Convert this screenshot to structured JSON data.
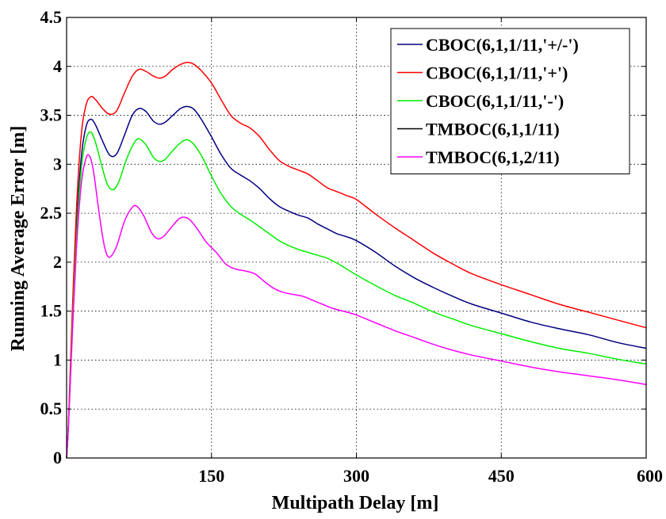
{
  "chart_data": {
    "type": "line",
    "title": "",
    "xlabel": "Multipath Delay [m]",
    "ylabel": "Running Average Error [m]",
    "xlim": [
      0,
      600
    ],
    "ylim": [
      0,
      4.5
    ],
    "xticks": [
      150,
      300,
      450,
      600
    ],
    "xtick_labels": [
      "150",
      "300",
      "450",
      "600"
    ],
    "yticks": [
      0,
      0.5,
      1,
      1.5,
      2,
      2.5,
      3,
      3.5,
      4,
      4.5
    ],
    "ytick_labels": [
      "0",
      "0.5",
      "1",
      "1.5",
      "2",
      "2.5",
      "3",
      "3.5",
      "4",
      "4.5"
    ],
    "grid": true,
    "legend_position": "top-right",
    "series": [
      {
        "name": "CBOC(6,1,1/11,'+/-')",
        "color": "#000080",
        "points": [
          [
            0,
            0
          ],
          [
            2,
            0.35
          ],
          [
            5,
            1.15
          ],
          [
            10,
            2.3
          ],
          [
            15,
            3.05
          ],
          [
            20,
            3.38
          ],
          [
            25,
            3.46
          ],
          [
            30,
            3.4
          ],
          [
            38,
            3.22
          ],
          [
            45,
            3.09
          ],
          [
            52,
            3.11
          ],
          [
            60,
            3.3
          ],
          [
            68,
            3.5
          ],
          [
            75,
            3.57
          ],
          [
            82,
            3.54
          ],
          [
            90,
            3.44
          ],
          [
            96,
            3.41
          ],
          [
            102,
            3.43
          ],
          [
            110,
            3.5
          ],
          [
            118,
            3.57
          ],
          [
            125,
            3.59
          ],
          [
            132,
            3.56
          ],
          [
            140,
            3.45
          ],
          [
            150,
            3.28
          ],
          [
            160,
            3.1
          ],
          [
            170,
            2.96
          ],
          [
            180,
            2.89
          ],
          [
            190,
            2.83
          ],
          [
            200,
            2.75
          ],
          [
            210,
            2.65
          ],
          [
            220,
            2.57
          ],
          [
            230,
            2.52
          ],
          [
            240,
            2.48
          ],
          [
            250,
            2.45
          ],
          [
            260,
            2.39
          ],
          [
            270,
            2.34
          ],
          [
            280,
            2.29
          ],
          [
            290,
            2.26
          ],
          [
            300,
            2.22
          ],
          [
            320,
            2.1
          ],
          [
            340,
            1.96
          ],
          [
            360,
            1.84
          ],
          [
            380,
            1.74
          ],
          [
            400,
            1.65
          ],
          [
            420,
            1.57
          ],
          [
            450,
            1.48
          ],
          [
            480,
            1.39
          ],
          [
            510,
            1.32
          ],
          [
            540,
            1.26
          ],
          [
            570,
            1.18
          ],
          [
            600,
            1.12
          ]
        ]
      },
      {
        "name": "CBOC(6,1,1/11,'+')",
        "color": "#ff0000",
        "points": [
          [
            0,
            0
          ],
          [
            2,
            0.38
          ],
          [
            5,
            1.25
          ],
          [
            10,
            2.5
          ],
          [
            15,
            3.28
          ],
          [
            20,
            3.6
          ],
          [
            25,
            3.69
          ],
          [
            30,
            3.66
          ],
          [
            38,
            3.56
          ],
          [
            45,
            3.51
          ],
          [
            52,
            3.55
          ],
          [
            60,
            3.73
          ],
          [
            68,
            3.9
          ],
          [
            75,
            3.97
          ],
          [
            82,
            3.95
          ],
          [
            90,
            3.9
          ],
          [
            96,
            3.88
          ],
          [
            102,
            3.9
          ],
          [
            110,
            3.97
          ],
          [
            118,
            4.02
          ],
          [
            125,
            4.04
          ],
          [
            132,
            4.02
          ],
          [
            140,
            3.95
          ],
          [
            150,
            3.83
          ],
          [
            160,
            3.66
          ],
          [
            170,
            3.5
          ],
          [
            180,
            3.42
          ],
          [
            190,
            3.37
          ],
          [
            200,
            3.28
          ],
          [
            210,
            3.15
          ],
          [
            220,
            3.04
          ],
          [
            230,
            2.98
          ],
          [
            240,
            2.94
          ],
          [
            250,
            2.9
          ],
          [
            260,
            2.83
          ],
          [
            270,
            2.76
          ],
          [
            280,
            2.72
          ],
          [
            290,
            2.68
          ],
          [
            300,
            2.64
          ],
          [
            320,
            2.49
          ],
          [
            340,
            2.35
          ],
          [
            360,
            2.22
          ],
          [
            380,
            2.09
          ],
          [
            400,
            1.98
          ],
          [
            420,
            1.88
          ],
          [
            450,
            1.77
          ],
          [
            480,
            1.67
          ],
          [
            510,
            1.57
          ],
          [
            540,
            1.49
          ],
          [
            570,
            1.41
          ],
          [
            600,
            1.33
          ]
        ]
      },
      {
        "name": "CBOC(6,1,1/11,'-')",
        "color": "#00ee00",
        "points": [
          [
            0,
            0
          ],
          [
            2,
            0.34
          ],
          [
            5,
            1.1
          ],
          [
            10,
            2.2
          ],
          [
            15,
            2.93
          ],
          [
            20,
            3.25
          ],
          [
            25,
            3.33
          ],
          [
            30,
            3.22
          ],
          [
            36,
            3.0
          ],
          [
            42,
            2.8
          ],
          [
            48,
            2.74
          ],
          [
            54,
            2.82
          ],
          [
            62,
            3.05
          ],
          [
            70,
            3.22
          ],
          [
            75,
            3.26
          ],
          [
            82,
            3.2
          ],
          [
            90,
            3.07
          ],
          [
            96,
            3.03
          ],
          [
            102,
            3.05
          ],
          [
            110,
            3.14
          ],
          [
            118,
            3.22
          ],
          [
            125,
            3.25
          ],
          [
            132,
            3.2
          ],
          [
            140,
            3.08
          ],
          [
            150,
            2.88
          ],
          [
            160,
            2.7
          ],
          [
            170,
            2.57
          ],
          [
            180,
            2.49
          ],
          [
            190,
            2.43
          ],
          [
            200,
            2.36
          ],
          [
            210,
            2.29
          ],
          [
            220,
            2.22
          ],
          [
            230,
            2.17
          ],
          [
            240,
            2.13
          ],
          [
            250,
            2.1
          ],
          [
            260,
            2.07
          ],
          [
            270,
            2.04
          ],
          [
            280,
            1.99
          ],
          [
            290,
            1.93
          ],
          [
            300,
            1.87
          ],
          [
            320,
            1.76
          ],
          [
            340,
            1.66
          ],
          [
            360,
            1.58
          ],
          [
            380,
            1.49
          ],
          [
            400,
            1.42
          ],
          [
            420,
            1.35
          ],
          [
            450,
            1.27
          ],
          [
            480,
            1.19
          ],
          [
            510,
            1.12
          ],
          [
            540,
            1.07
          ],
          [
            570,
            1.01
          ],
          [
            600,
            0.96
          ]
        ]
      },
      {
        "name": "TMBOC(6,1,1/11)",
        "color": "#000000",
        "points": []
      },
      {
        "name": "TMBOC(6,1,2/11)",
        "color": "#ff00ff",
        "points": [
          [
            0,
            0
          ],
          [
            2,
            0.33
          ],
          [
            5,
            1.05
          ],
          [
            10,
            2.1
          ],
          [
            15,
            2.78
          ],
          [
            20,
            3.06
          ],
          [
            24,
            3.08
          ],
          [
            28,
            2.92
          ],
          [
            33,
            2.55
          ],
          [
            38,
            2.22
          ],
          [
            42,
            2.07
          ],
          [
            46,
            2.06
          ],
          [
            52,
            2.17
          ],
          [
            60,
            2.42
          ],
          [
            68,
            2.56
          ],
          [
            73,
            2.57
          ],
          [
            80,
            2.47
          ],
          [
            88,
            2.3
          ],
          [
            94,
            2.24
          ],
          [
            100,
            2.26
          ],
          [
            108,
            2.35
          ],
          [
            116,
            2.44
          ],
          [
            122,
            2.46
          ],
          [
            128,
            2.43
          ],
          [
            136,
            2.33
          ],
          [
            145,
            2.2
          ],
          [
            155,
            2.1
          ],
          [
            165,
            1.98
          ],
          [
            175,
            1.93
          ],
          [
            185,
            1.91
          ],
          [
            195,
            1.88
          ],
          [
            205,
            1.8
          ],
          [
            215,
            1.73
          ],
          [
            225,
            1.69
          ],
          [
            235,
            1.67
          ],
          [
            245,
            1.65
          ],
          [
            255,
            1.61
          ],
          [
            265,
            1.57
          ],
          [
            275,
            1.53
          ],
          [
            290,
            1.49
          ],
          [
            300,
            1.46
          ],
          [
            320,
            1.38
          ],
          [
            340,
            1.3
          ],
          [
            360,
            1.23
          ],
          [
            380,
            1.16
          ],
          [
            400,
            1.1
          ],
          [
            420,
            1.05
          ],
          [
            450,
            0.99
          ],
          [
            480,
            0.93
          ],
          [
            510,
            0.88
          ],
          [
            540,
            0.84
          ],
          [
            570,
            0.8
          ],
          [
            600,
            0.75
          ]
        ]
      }
    ]
  },
  "colors": {
    "plot_background": "#ffffff",
    "grid": "#000000",
    "axes": "#000000"
  }
}
